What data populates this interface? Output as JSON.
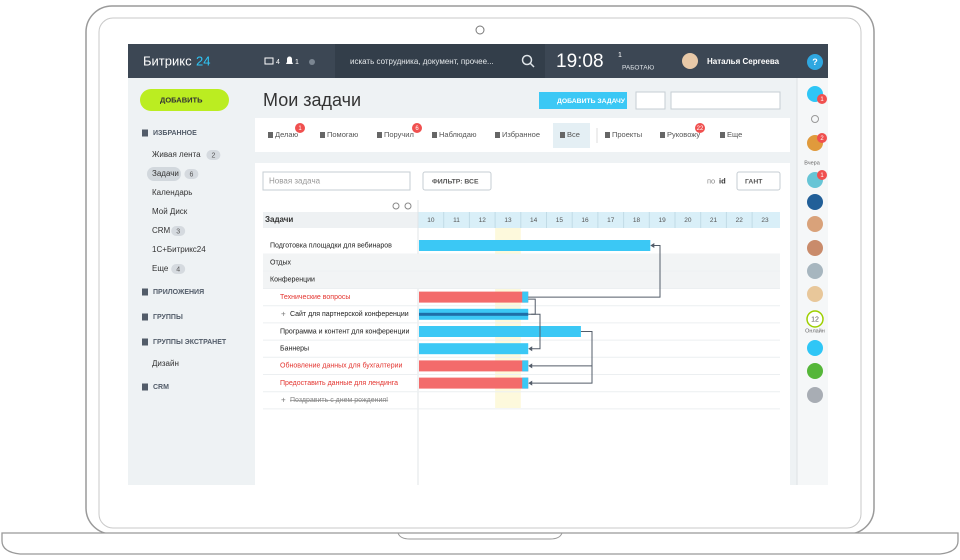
{
  "header": {
    "logo": "Битрикс",
    "logo_num": "24",
    "messages": 4,
    "notifications": 1,
    "search": "искать сотрудника, документ, прочее...",
    "time": "19:08",
    "flag_count": 1,
    "status": "РАБОТАЮ",
    "user": "Наталья Сергеева",
    "help": "?"
  },
  "sidebar": {
    "add": "ДОБАВИТЬ",
    "sections": [
      {
        "title": "ИЗБРАННОЕ",
        "items": [
          {
            "label": "Живая лента",
            "count": 2
          },
          {
            "label": "Задачи",
            "count": 6
          },
          {
            "label": "Календарь"
          },
          {
            "label": "Мой Диск"
          },
          {
            "label": "CRM",
            "count": 3
          },
          {
            "label": "1С+Битрикс24"
          },
          {
            "label": "Еще",
            "count": 4
          }
        ]
      },
      {
        "title": "ПРИЛОЖЕНИЯ",
        "items": []
      },
      {
        "title": "ГРУППЫ",
        "items": []
      },
      {
        "title": "ГРУППЫ ЭКСТРАНЕТ",
        "items": [
          {
            "label": "Дизайн"
          }
        ]
      },
      {
        "title": "CRM",
        "items": []
      }
    ]
  },
  "main": {
    "title": "Мои задачи",
    "add_task": "ДОБАВИТЬ ЗАДАЧУ",
    "tabs": [
      {
        "label": "Делаю",
        "badge": 1
      },
      {
        "label": "Помогаю"
      },
      {
        "label": "Поручил",
        "badge": 6
      },
      {
        "label": "Наблюдаю"
      },
      {
        "label": "Избранное"
      },
      {
        "label": "Все"
      },
      {
        "label": "Проекты"
      },
      {
        "label": "Руковожу",
        "badge": 22
      },
      {
        "label": "Еще"
      }
    ],
    "new_task": "Новая задача",
    "filter": "ФИЛЬТР: ВСЕ",
    "sort_by": "по",
    "sort_field": "id",
    "view": "ГАНТ"
  },
  "gantt": {
    "column": "Задачи",
    "days": [
      10,
      11,
      12,
      13,
      14,
      15,
      16,
      17,
      18,
      19,
      20,
      21,
      22,
      23
    ],
    "today": 13,
    "rows": [
      {
        "name": "Подготовка площадки для вебинаров",
        "kind": "task",
        "start": 10,
        "end": 19
      },
      {
        "name": "Отдых",
        "kind": "group"
      },
      {
        "name": "Конференции",
        "kind": "group"
      },
      {
        "name": "Технические вопросы",
        "kind": "task",
        "state": "overdue",
        "start": 10,
        "end": 14.25
      },
      {
        "name": "Сайт для партнерской конференции",
        "kind": "task",
        "sub": "+",
        "start": 10,
        "end": 14.25
      },
      {
        "name": "Программа и контент для конференции",
        "kind": "task",
        "start": 10,
        "end": 16.3
      },
      {
        "name": "Баннеры",
        "kind": "task",
        "start": 10,
        "end": 14.25
      },
      {
        "name": "Обновление данных для бухгалтерии",
        "kind": "task",
        "state": "overdue",
        "start": 10,
        "end": 14.25
      },
      {
        "name": "Предоставить данные для лендинга",
        "kind": "task",
        "state": "overdue",
        "start": 10,
        "end": 14.25
      },
      {
        "name": "Поздравить с днем рождения!",
        "kind": "task",
        "state": "done",
        "sub": "+"
      }
    ]
  },
  "rightbar": {
    "yesterday": "Вчера",
    "online_count": 12,
    "online": "Онлайн",
    "badges": [
      1,
      2,
      1
    ]
  }
}
